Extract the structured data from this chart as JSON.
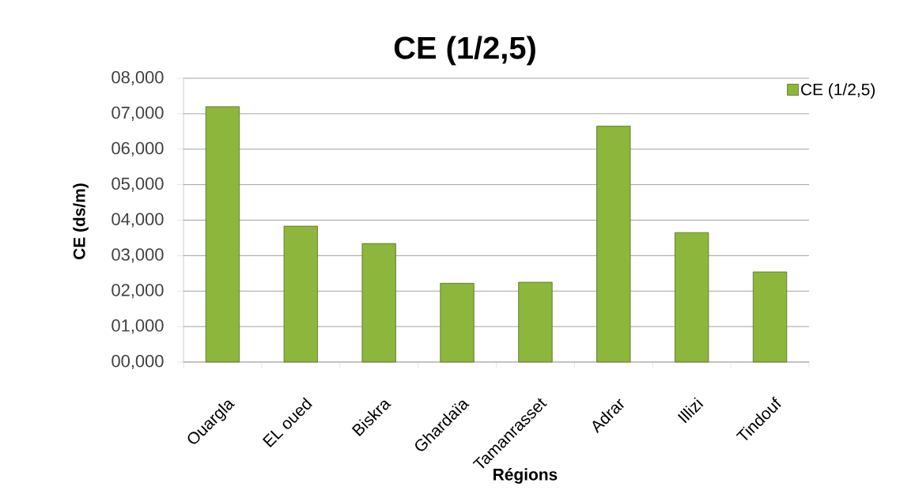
{
  "chart_data": {
    "type": "bar",
    "title": "CE  (1/2,5)",
    "xlabel": "Régions",
    "ylabel": "CE (ds/m)",
    "categories": [
      "Ouargla",
      "EL oued",
      "Biskra",
      "Ghardaïa",
      "Tamanrasset",
      "Adrar",
      "Illizi",
      "Tindouf"
    ],
    "series": [
      {
        "name": "CE  (1/2,5)",
        "color": "#8db63c",
        "values": [
          7.2,
          3.83,
          3.34,
          2.22,
          2.25,
          6.65,
          3.65,
          2.54
        ]
      }
    ],
    "ylim": [
      0,
      8
    ],
    "yticks": [
      {
        "value": 0,
        "label": "00,000"
      },
      {
        "value": 1,
        "label": "01,000"
      },
      {
        "value": 2,
        "label": "02,000"
      },
      {
        "value": 3,
        "label": "03,000"
      },
      {
        "value": 4,
        "label": "04,000"
      },
      {
        "value": 5,
        "label": "05,000"
      },
      {
        "value": 6,
        "label": "06,000"
      },
      {
        "value": 7,
        "label": "07,000"
      },
      {
        "value": 8,
        "label": "08,000"
      }
    ],
    "grid": "y",
    "legend": "top right"
  }
}
